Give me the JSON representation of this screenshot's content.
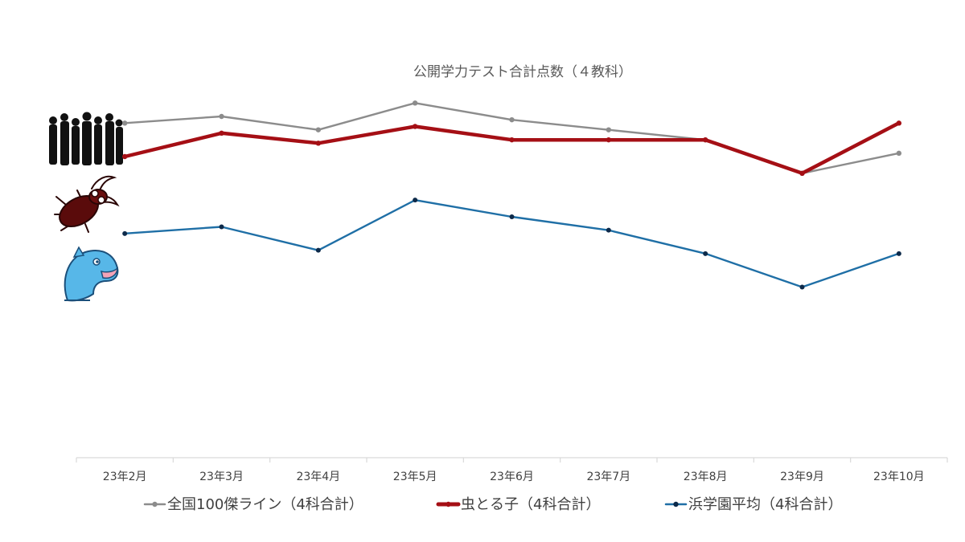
{
  "chart_data": {
    "type": "line",
    "title": "公開学力テスト合計点数（４教科）",
    "categories": [
      "23年2月",
      "23年3月",
      "23年4月",
      "23年5月",
      "23年6月",
      "23年7月",
      "23年8月",
      "23年9月",
      "23年10月"
    ],
    "series": [
      {
        "name": "全国100傑ライン（4科合計）",
        "color": "#8c8c8c",
        "icon": "crowd-silhouette-icon",
        "values": [
          100,
          102,
          98,
          106,
          101,
          98,
          95,
          85,
          91
        ]
      },
      {
        "name": "虫とる子（4科合計）",
        "color": "#a50f15",
        "icon": "stag-beetle-icon",
        "values": [
          90,
          97,
          94,
          99,
          95,
          95,
          95,
          85,
          100
        ]
      },
      {
        "name": "浜学園平均（4科合計）",
        "color": "#1f6fa6",
        "icon": "dolphin-icon",
        "values": [
          67,
          69,
          62,
          77,
          72,
          68,
          61,
          51,
          61
        ]
      }
    ],
    "ylim": [
      0,
      120
    ],
    "grid": false,
    "legend": "bottom",
    "xlabel": "",
    "ylabel": ""
  }
}
